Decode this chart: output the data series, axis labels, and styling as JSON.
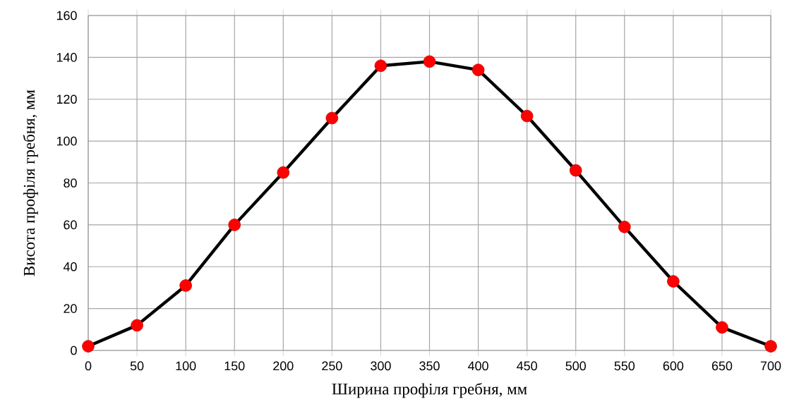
{
  "chart_data": {
    "type": "line",
    "xlabel": "Ширина профіля гребня, мм",
    "ylabel": "Висота профіля гребня, мм",
    "x": [
      0,
      50,
      100,
      150,
      200,
      250,
      300,
      350,
      400,
      450,
      500,
      550,
      600,
      650,
      700
    ],
    "series": [
      {
        "color": "#000000",
        "colors": [
          "#ff0000",
          "#ff0000",
          "#ff0000",
          "#ff0000",
          "#ff0000",
          "#ff0000",
          "#ff0000",
          "#ff0000",
          "#ff0000",
          "#ff0000",
          "#ff0000",
          "#ff0000",
          "#ff0000",
          "#ff0000",
          "#ff0000"
        ],
        "values": [
          2,
          12,
          31,
          60,
          85,
          111,
          136,
          138,
          134,
          112,
          86,
          59,
          33,
          11,
          2
        ]
      }
    ],
    "xlim": [
      0,
      700
    ],
    "ylim": [
      0,
      160
    ],
    "xticks": [
      0,
      50,
      100,
      150,
      200,
      250,
      300,
      350,
      400,
      450,
      500,
      550,
      600,
      650,
      700
    ],
    "yticks": [
      0,
      20,
      40,
      60,
      80,
      100,
      120,
      140,
      160
    ],
    "grid": true,
    "marker": "circle",
    "line_style": "solid"
  }
}
